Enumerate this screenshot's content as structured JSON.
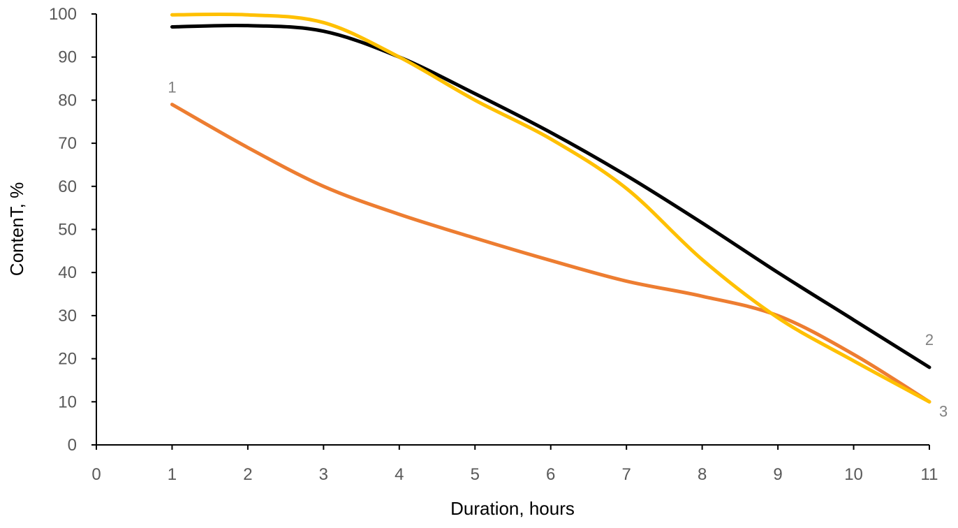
{
  "chart_data": {
    "type": "line",
    "title": "",
    "xlabel": "Duration, hours",
    "ylabel": "ContenT, %",
    "xlim": [
      0,
      11
    ],
    "ylim": [
      0,
      100
    ],
    "x_ticks": [
      "0",
      "1",
      "2",
      "3",
      "4",
      "5",
      "6",
      "7",
      "8",
      "9",
      "10",
      "11"
    ],
    "y_ticks": [
      "0",
      "10",
      "20",
      "30",
      "40",
      "50",
      "60",
      "70",
      "80",
      "90",
      "100"
    ],
    "grid": false,
    "legend": "none",
    "series": [
      {
        "label": "1",
        "color": "#ED7D31",
        "x": [
          1,
          2,
          3,
          4,
          5,
          6,
          7,
          8,
          9,
          10,
          11
        ],
        "y": [
          79,
          69,
          60,
          53.5,
          48,
          42.8,
          38,
          34.5,
          30,
          21,
          10
        ]
      },
      {
        "label": "2",
        "color": "#000000",
        "x": [
          1,
          2,
          3,
          4,
          5,
          6,
          7,
          8,
          9,
          10,
          11
        ],
        "y": [
          97,
          97.3,
          96,
          90,
          81.5,
          72.5,
          62.5,
          51.5,
          40,
          29,
          18
        ]
      },
      {
        "label": "3",
        "color": "#FFC000",
        "x": [
          1,
          2,
          3,
          4,
          5,
          6,
          7,
          8,
          9,
          10,
          11
        ],
        "y": [
          99.8,
          99.8,
          98,
          90,
          80,
          71,
          59.5,
          43,
          29.5,
          19.5,
          10
        ]
      }
    ]
  }
}
